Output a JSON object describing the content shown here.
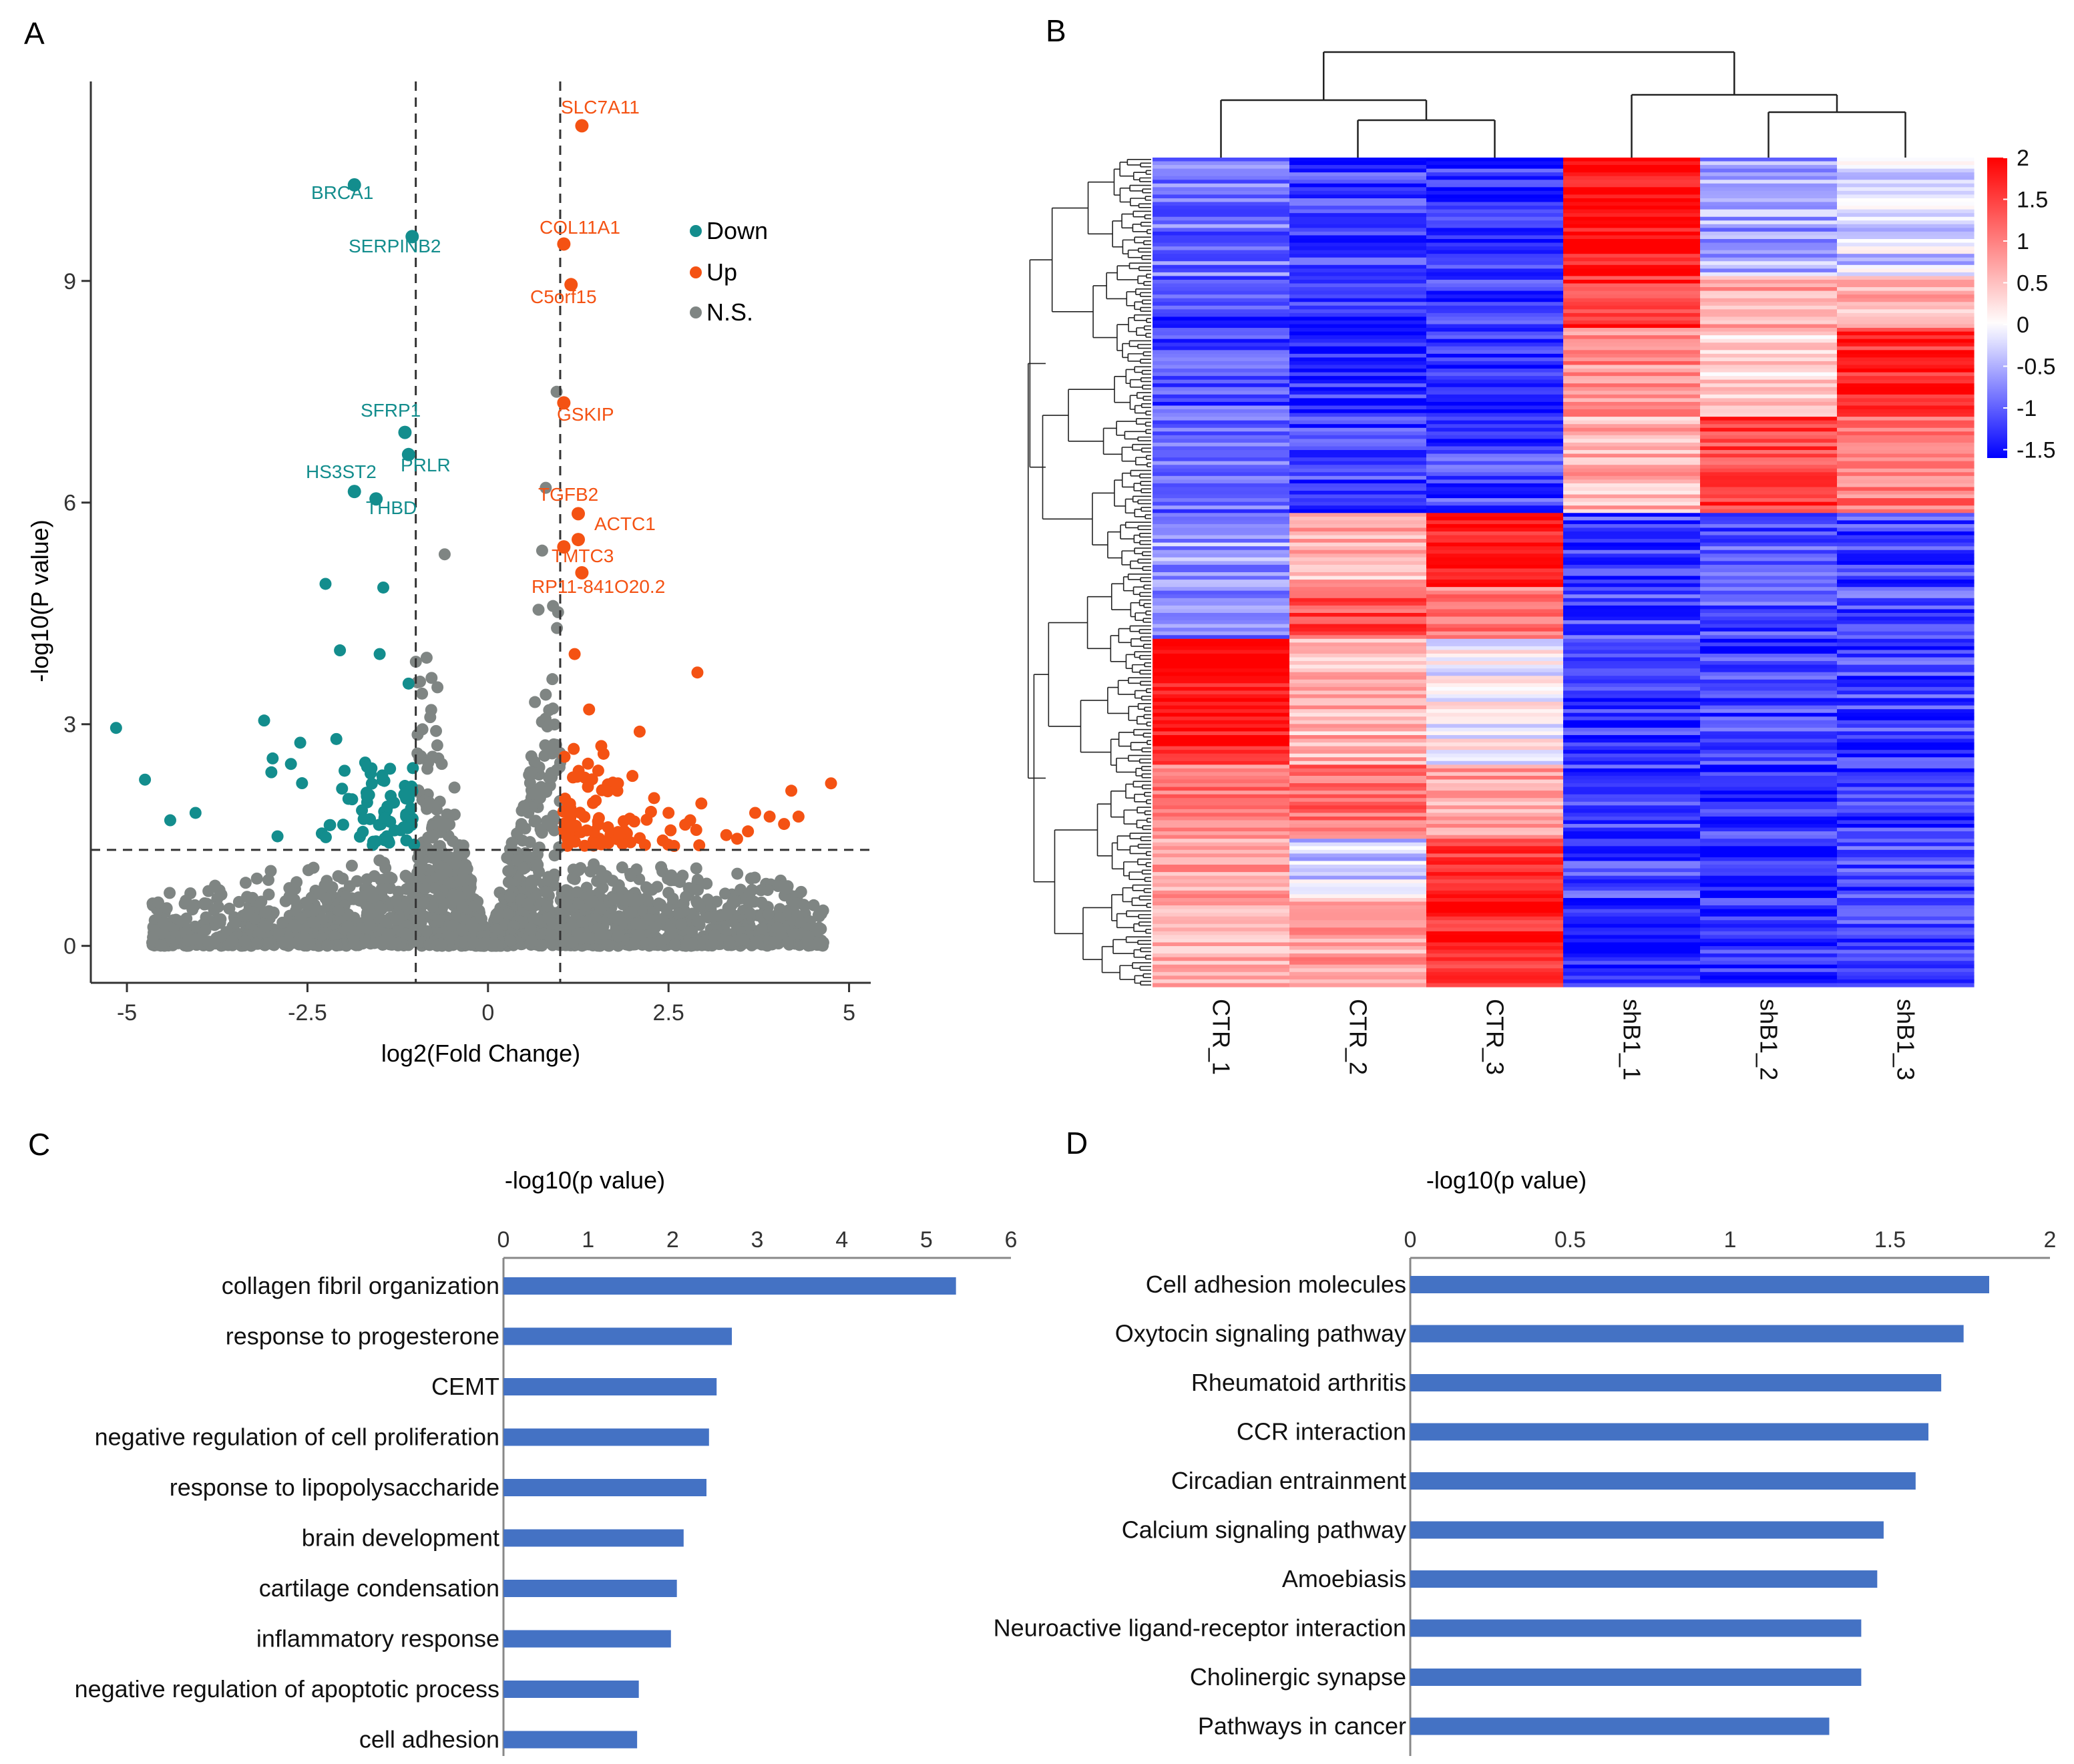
{
  "panels": {
    "a": "A",
    "b": "B",
    "c": "C",
    "d": "D"
  },
  "colors": {
    "down": "#138d8d",
    "up": "#f45213",
    "ns": "#7f8583",
    "bar": "#4472c4",
    "axis": "#333333",
    "heat_high": "#ff0000",
    "heat_low": "#0000ff",
    "heat_mid": "#ffffff"
  },
  "chart_data": [
    {
      "type": "scatter",
      "panel": "A",
      "xlabel": "log2(Fold Change)",
      "ylabel": "-log10(P value)",
      "xlim": [
        -5.5,
        5.3
      ],
      "ylim": [
        -0.5,
        11.7
      ],
      "xticks": [
        -5,
        -2.5,
        0,
        2.5,
        5
      ],
      "xtick_labels": [
        "-5",
        "-2.5",
        "0",
        "2.5",
        "5"
      ],
      "yticks": [
        0,
        3,
        6,
        9
      ],
      "ytick_labels": [
        "0",
        "3",
        "6",
        "9"
      ],
      "fc_thresholds": [
        -1,
        1
      ],
      "p_threshold": 1.3,
      "legend": [
        {
          "label": "Down",
          "key": "down"
        },
        {
          "label": "Up",
          "key": "up"
        },
        {
          "label": "N.S.",
          "key": "ns"
        }
      ],
      "labeled_points": [
        {
          "gene": "SLC7A11",
          "x": 1.3,
          "y": 11.1,
          "group": "up"
        },
        {
          "gene": "COL11A1",
          "x": 1.05,
          "y": 9.5,
          "group": "up"
        },
        {
          "gene": "C5orf15",
          "x": 1.15,
          "y": 8.95,
          "group": "up"
        },
        {
          "gene": "GSKIP",
          "x": 1.05,
          "y": 7.35,
          "group": "up"
        },
        {
          "gene": "TGFB2",
          "x": 1.25,
          "y": 5.85,
          "group": "up"
        },
        {
          "gene": "ACTC1",
          "x": 1.25,
          "y": 5.5,
          "group": "up"
        },
        {
          "gene": "TMTC3",
          "x": 1.05,
          "y": 5.4,
          "group": "up"
        },
        {
          "gene": "RP11-841O20.2",
          "x": 1.3,
          "y": 5.05,
          "group": "up"
        },
        {
          "gene": "BRCA1",
          "x": -1.85,
          "y": 10.3,
          "group": "down"
        },
        {
          "gene": "SERPINB2",
          "x": -1.05,
          "y": 9.6,
          "group": "down"
        },
        {
          "gene": "SFRP1",
          "x": -1.15,
          "y": 6.95,
          "group": "down"
        },
        {
          "gene": "PRLR",
          "x": -1.1,
          "y": 6.65,
          "group": "down"
        },
        {
          "gene": "HS3ST2",
          "x": -1.85,
          "y": 6.15,
          "group": "down"
        },
        {
          "gene": "THBD",
          "x": -1.55,
          "y": 6.05,
          "group": "down"
        }
      ],
      "other_significant": [
        {
          "x": 4.75,
          "y": 2.2,
          "group": "up"
        },
        {
          "x": 4.2,
          "y": 2.1,
          "group": "up"
        },
        {
          "x": 4.3,
          "y": 1.75,
          "group": "up"
        },
        {
          "x": 4.1,
          "y": 1.65,
          "group": "up"
        },
        {
          "x": 3.9,
          "y": 1.75,
          "group": "up"
        },
        {
          "x": 3.7,
          "y": 1.8,
          "group": "up"
        },
        {
          "x": 3.6,
          "y": 1.55,
          "group": "up"
        },
        {
          "x": 3.45,
          "y": 1.45,
          "group": "up"
        },
        {
          "x": 3.3,
          "y": 1.5,
          "group": "up"
        },
        {
          "x": 2.9,
          "y": 3.7,
          "group": "up"
        },
        {
          "x": 2.1,
          "y": 2.9,
          "group": "up"
        },
        {
          "x": 1.4,
          "y": 3.2,
          "group": "up"
        },
        {
          "x": 1.2,
          "y": 3.95,
          "group": "up"
        },
        {
          "x": 2.8,
          "y": 1.7,
          "group": "up"
        },
        {
          "x": 2.5,
          "y": 1.8,
          "group": "up"
        },
        {
          "x": 2.3,
          "y": 2.0,
          "group": "up"
        },
        {
          "x": 2.0,
          "y": 2.3,
          "group": "up"
        },
        {
          "x": 1.8,
          "y": 2.2,
          "group": "up"
        },
        {
          "x": 1.6,
          "y": 2.6,
          "group": "up"
        },
        {
          "x": -5.15,
          "y": 2.95,
          "group": "down"
        },
        {
          "x": -4.75,
          "y": 2.25,
          "group": "down"
        },
        {
          "x": -4.4,
          "y": 1.7,
          "group": "down"
        },
        {
          "x": -4.05,
          "y": 1.8,
          "group": "down"
        },
        {
          "x": -3.1,
          "y": 3.05,
          "group": "down"
        },
        {
          "x": -2.6,
          "y": 2.75,
          "group": "down"
        },
        {
          "x": -2.1,
          "y": 2.8,
          "group": "down"
        },
        {
          "x": -2.05,
          "y": 4.0,
          "group": "down"
        },
        {
          "x": -2.25,
          "y": 4.9,
          "group": "down"
        },
        {
          "x": -1.45,
          "y": 4.85,
          "group": "down"
        },
        {
          "x": -1.5,
          "y": 3.95,
          "group": "down"
        },
        {
          "x": -1.1,
          "y": 3.55,
          "group": "down"
        },
        {
          "x": -3.0,
          "y": 2.35,
          "group": "down"
        }
      ]
    },
    {
      "type": "heatmap",
      "panel": "B",
      "columns": [
        "CTR_1",
        "CTR_2",
        "CTR_3",
        "shB1_1",
        "shB1_2",
        "shB1_3"
      ],
      "colorbar_ticks": [
        2,
        1.5,
        1,
        0.5,
        0,
        -0.5,
        -1,
        -1.5
      ],
      "colorbar_labels": [
        "2",
        "1.5",
        "1",
        "0.5",
        "0",
        "-0.5",
        "-1",
        "-1.5"
      ],
      "color_range": [
        -1.6,
        2.0
      ],
      "column_dendrogram": "((CTR_1,(CTR_2,CTR_3)),(shB1_1,(shB1_2,shB1_3)))",
      "row_clusters": [
        {
          "rows": 32,
          "values": [
            -0.9,
            -1.2,
            -1.3,
            1.9,
            -0.6,
            -0.3
          ]
        },
        {
          "rows": 14,
          "values": [
            -1.2,
            -1.3,
            -1.3,
            1.6,
            0.7,
            0.6
          ]
        },
        {
          "rows": 24,
          "values": [
            -1.1,
            -1.3,
            -1.4,
            0.9,
            0.3,
            1.7
          ]
        },
        {
          "rows": 26,
          "values": [
            -1.0,
            -1.2,
            -1.2,
            0.6,
            1.5,
            1.1
          ]
        },
        {
          "rows": 20,
          "values": [
            -0.6,
            0.6,
            1.8,
            -1.2,
            -1.1,
            -1.2
          ]
        },
        {
          "rows": 14,
          "values": [
            -0.8,
            1.4,
            1.0,
            -1.2,
            -1.1,
            -1.1
          ]
        },
        {
          "rows": 34,
          "values": [
            1.9,
            0.6,
            0.0,
            -1.3,
            -1.2,
            -1.2
          ]
        },
        {
          "rows": 20,
          "values": [
            1.1,
            1.2,
            0.8,
            -1.2,
            -1.3,
            -1.3
          ]
        },
        {
          "rows": 16,
          "values": [
            0.7,
            -0.3,
            1.6,
            -1.2,
            -1.4,
            -1.2
          ]
        },
        {
          "rows": 24,
          "values": [
            0.6,
            0.7,
            1.7,
            -1.4,
            -1.3,
            -1.2
          ]
        }
      ]
    },
    {
      "type": "bar",
      "panel": "C",
      "orientation": "horizontal",
      "title": "-log10(p value)",
      "xlim": [
        0,
        6
      ],
      "ticks": [
        0,
        1,
        2,
        3,
        4,
        5,
        6
      ],
      "tick_labels": [
        "0",
        "1",
        "2",
        "3",
        "4",
        "5",
        "6"
      ],
      "categories": [
        "collagen fibril organization",
        "response to progesterone",
        "CEMT",
        "negative regulation of cell proliferation",
        "response to lipopolysaccharide",
        "brain development",
        "cartilage condensation",
        "inflammatory response",
        "negative regulation of apoptotic process",
        "cell adhesion"
      ],
      "values": [
        5.35,
        2.7,
        2.52,
        2.43,
        2.4,
        2.13,
        2.05,
        1.98,
        1.6,
        1.58
      ]
    },
    {
      "type": "bar",
      "panel": "D",
      "orientation": "horizontal",
      "title": "-log10(p value)",
      "xlim": [
        0,
        2
      ],
      "ticks": [
        0,
        0.5,
        1,
        1.5,
        2
      ],
      "tick_labels": [
        "0",
        "0.5",
        "1",
        "1.5",
        "2"
      ],
      "categories": [
        "Cell adhesion molecules",
        "Oxytocin signaling pathway",
        "Rheumatoid arthritis",
        "CCR interaction",
        "Circadian entrainment",
        "Calcium signaling pathway",
        "Amoebiasis",
        "Neuroactive ligand-receptor interaction",
        "Cholinergic synapse",
        "Pathways in cancer"
      ],
      "values": [
        1.81,
        1.73,
        1.66,
        1.62,
        1.58,
        1.48,
        1.46,
        1.41,
        1.41,
        1.31
      ]
    }
  ]
}
